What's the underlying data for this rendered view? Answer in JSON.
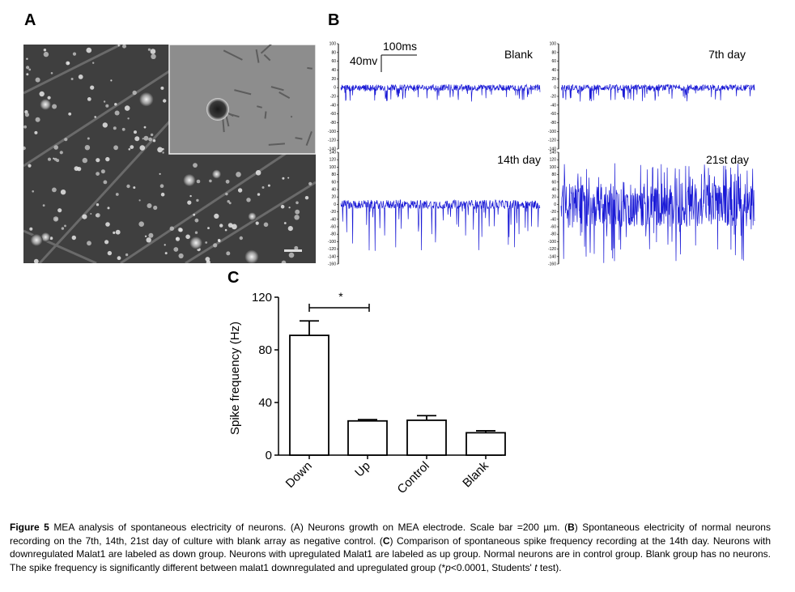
{
  "panels": {
    "a_label": "A",
    "b_label": "B",
    "c_label": "C"
  },
  "traces": {
    "scale_time": "100ms",
    "scale_voltage": "40mv",
    "yticks_top": [
      "100",
      "80",
      "60",
      "40",
      "20",
      "0",
      "-20",
      "-40",
      "-60",
      "-80",
      "-100",
      "-120",
      "-140"
    ],
    "yticks_bottom": [
      "140",
      "120",
      "100",
      "80",
      "60",
      "40",
      "20",
      "0",
      "-20",
      "-40",
      "-60",
      "-80",
      "-100",
      "-120",
      "-140",
      "-160"
    ],
    "recordings": [
      {
        "label": "Blank",
        "amplitude": "low"
      },
      {
        "label": "7th day",
        "amplitude": "low"
      },
      {
        "label": "14th day",
        "amplitude": "medium"
      },
      {
        "label": "21st day",
        "amplitude": "high"
      }
    ],
    "trace_color": "#1a1ad6"
  },
  "chart_data": {
    "type": "bar",
    "categories": [
      "Down",
      "Up",
      "Control",
      "Blank"
    ],
    "values": [
      91,
      26,
      26.5,
      17
    ],
    "errors": [
      11,
      1,
      3.5,
      1.5
    ],
    "ylabel": "Spike frequency (Hz)",
    "xlabel": "",
    "ylim": [
      0,
      120
    ],
    "yticks": [
      0,
      40,
      80,
      120
    ],
    "significance": {
      "from": "Down",
      "to": "Up",
      "label": "*"
    },
    "grid": false
  },
  "caption": {
    "figure_label": "Figure 5",
    "part1": " MEA analysis of spontaneous electricity of neurons. (A) Neurons growth on MEA electrode. Scale bar =200 µm. (",
    "b": "B",
    "part2": ") Spontaneous electricity of normal neurons recording on the 7th, 14th, 21st day of culture with blank array as negative control. (",
    "c": "C",
    "part3": ") Comparison of spontaneous spike frequency recording at the 14th day. Neurons with downregulated Malat1 are labeled as down group. Neurons with upregulated Malat1 are labeled as up group. Normal neurons are in control group. Blank group has no neurons. The spike frequency is significantly different between malat1 downregulated and upregulated group (*",
    "p": "p",
    "part4": "<0.0001, Students' ",
    "t": "t",
    "part5": " test)."
  }
}
